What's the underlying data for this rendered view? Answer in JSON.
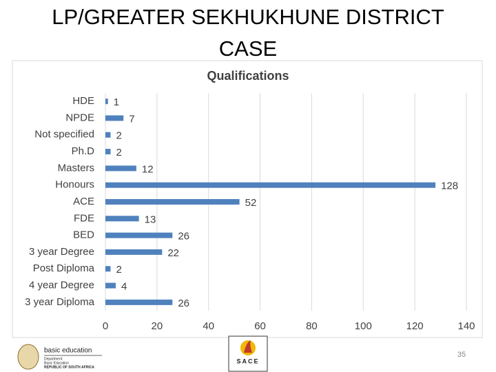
{
  "slide": {
    "title": "LP/GREATER SEKHUKHUNE DISTRICT CASE",
    "page_number": "35",
    "logo_left": {
      "name": "basic education",
      "lines": [
        "Department:",
        "Basic Education",
        "REPUBLIC OF SOUTH AFRICA"
      ]
    },
    "logo_right": {
      "name": "SACE"
    }
  },
  "chart_data": {
    "type": "hbar",
    "title": "Qualifications",
    "categories": [
      "HDE",
      "NPDE",
      "Not specified",
      "Ph.D",
      "Masters",
      "Honours",
      "ACE",
      "FDE",
      "BED",
      "3 year Degree",
      "Post Diploma",
      "4 year Degree",
      "3 year Diploma"
    ],
    "values": [
      1,
      7,
      2,
      2,
      12,
      128,
      52,
      13,
      26,
      22,
      2,
      4,
      26
    ],
    "color": "#4f81bd",
    "xlim": [
      0,
      140
    ],
    "xticks": [
      0,
      20,
      40,
      60,
      80,
      100,
      120,
      140
    ],
    "grid": true
  }
}
